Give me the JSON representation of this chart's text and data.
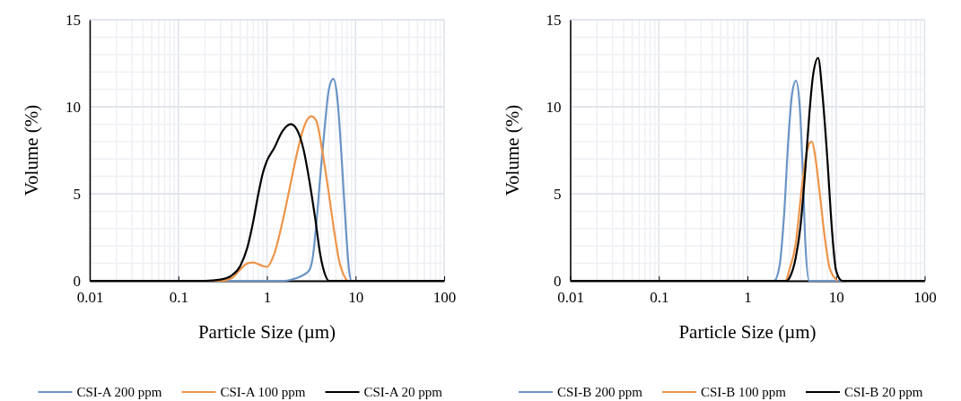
{
  "chart_data": [
    {
      "type": "line",
      "xlabel": "Particle Size (µm)",
      "ylabel": "Volume (%)",
      "log": "x",
      "xlim": [
        0.01,
        100
      ],
      "xticks": [
        0.01,
        0.1,
        1,
        10,
        100
      ],
      "ylim": [
        0,
        15
      ],
      "yticks": [
        0,
        5,
        10,
        15
      ],
      "grid": true,
      "legend": "bottom",
      "marker": "none",
      "line_style": "solid",
      "series": [
        {
          "name": "CSI-A 200 ppm",
          "color": "#6a94c5",
          "x": [
            0.01,
            1.6,
            2.0,
            2.5,
            3.0,
            3.3,
            3.6,
            4.0,
            4.5,
            5.0,
            5.6,
            6.2,
            7.0,
            7.8,
            8.5,
            9.0,
            100
          ],
          "values": [
            0,
            0,
            0.1,
            0.3,
            0.6,
            1.4,
            3.2,
            6.0,
            8.9,
            11.0,
            11.6,
            10.6,
            6.9,
            2.9,
            0.5,
            0,
            0
          ]
        },
        {
          "name": "CSI-A 100 ppm",
          "color": "#ee9448",
          "x": [
            0.01,
            0.3,
            0.4,
            0.5,
            0.6,
            0.7,
            0.8,
            0.9,
            1.0,
            1.2,
            1.5,
            1.8,
            2.2,
            2.6,
            3.15,
            3.6,
            4.2,
            5.0,
            5.8,
            6.5,
            7.5,
            8.2,
            100
          ],
          "values": [
            0,
            0,
            0.15,
            0.65,
            1.0,
            1.05,
            0.95,
            0.85,
            0.8,
            1.5,
            3.4,
            5.3,
            7.4,
            8.8,
            9.45,
            9.2,
            7.5,
            5.0,
            2.7,
            1.2,
            0.25,
            0,
            0
          ]
        },
        {
          "name": "CSI-A 20 ppm",
          "color": "#000000",
          "x": [
            0.01,
            0.2,
            0.3,
            0.4,
            0.5,
            0.6,
            0.7,
            0.8,
            0.9,
            1.0,
            1.2,
            1.5,
            1.86,
            2.2,
            2.6,
            3.0,
            3.5,
            4.0,
            4.5,
            5.0,
            100
          ],
          "values": [
            0,
            0,
            0.07,
            0.3,
            0.85,
            1.9,
            3.4,
            5.0,
            6.2,
            6.9,
            7.6,
            8.6,
            9.0,
            8.65,
            7.5,
            5.8,
            3.6,
            1.5,
            0.4,
            0,
            0
          ]
        }
      ]
    },
    {
      "type": "line",
      "xlabel": "Particle Size (µm)",
      "ylabel": "Volume (%)",
      "log": "x",
      "xlim": [
        0.01,
        100
      ],
      "xticks": [
        0.01,
        0.1,
        1,
        10,
        100
      ],
      "ylim": [
        0,
        15
      ],
      "yticks": [
        0,
        5,
        10,
        15
      ],
      "grid": true,
      "legend": "bottom",
      "marker": "none",
      "line_style": "solid",
      "series": [
        {
          "name": "CSI-B 200 ppm",
          "color": "#6a94c5",
          "x": [
            0.01,
            2.0,
            2.3,
            2.6,
            2.9,
            3.2,
            3.53,
            3.9,
            4.2,
            4.5,
            4.98,
            100
          ],
          "values": [
            0,
            0,
            0.85,
            3.9,
            8.2,
            10.8,
            11.5,
            9.95,
            6.5,
            2.2,
            0,
            0
          ]
        },
        {
          "name": "CSI-B 100 ppm",
          "color": "#ee9448",
          "x": [
            0.01,
            2.67,
            3.0,
            3.5,
            4.0,
            4.5,
            5.0,
            5.34,
            5.8,
            6.5,
            7.5,
            8.5,
            10.4
          ],
          "values": [
            0,
            0,
            0.7,
            2.1,
            4.8,
            6.9,
            7.9,
            8.0,
            7.2,
            5.15,
            2.4,
            0.7,
            0
          ]
        },
        {
          "name": "CSI-B 20 ppm",
          "color": "#000000",
          "x": [
            0.01,
            2.78,
            3.0,
            3.5,
            4.0,
            4.5,
            5.0,
            5.5,
            6.28,
            7.0,
            8.0,
            9.0,
            10.0,
            11.7,
            100
          ],
          "values": [
            0,
            0,
            0.2,
            1.3,
            3.3,
            6.4,
            9.6,
            11.8,
            12.8,
            10.8,
            6.9,
            2.9,
            0.6,
            0,
            0
          ]
        }
      ]
    }
  ]
}
